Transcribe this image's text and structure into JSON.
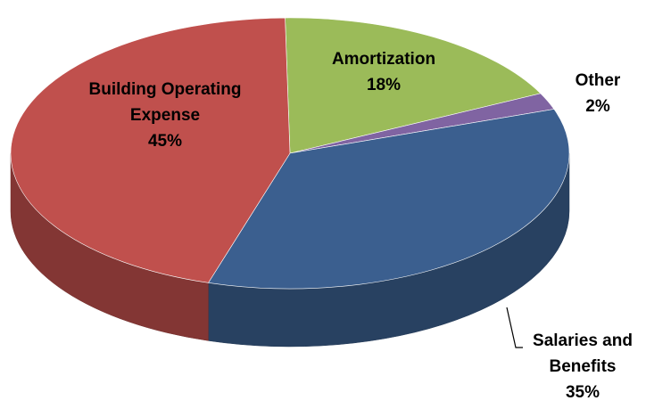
{
  "chart_data": {
    "type": "pie",
    "categories": [
      "Building Operating Expense",
      "Amortization",
      "Other",
      "Salaries and Benefits"
    ],
    "values": [
      45,
      18,
      2,
      35
    ],
    "value_labels": [
      "45%",
      "18%",
      "2%",
      "35%"
    ],
    "colors": [
      "#c0504d",
      "#9bbb59",
      "#8064a2",
      "#3b5f8f"
    ]
  }
}
